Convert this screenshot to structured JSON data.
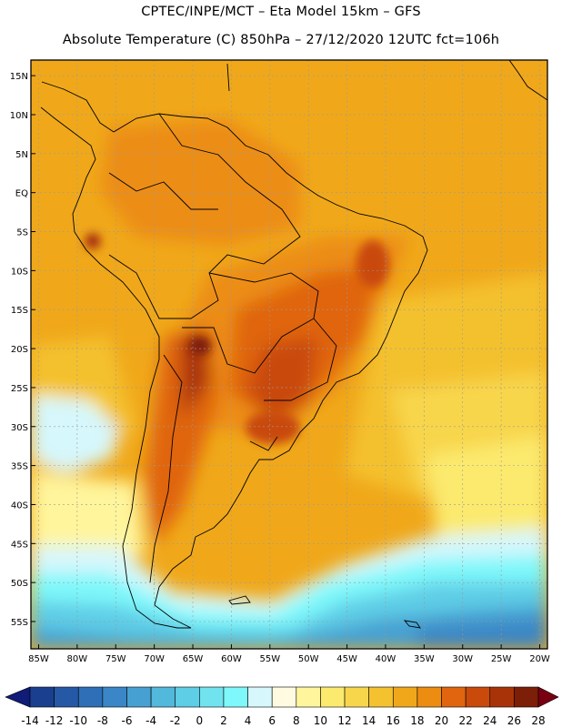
{
  "header": {
    "title_line1": "CPTEC/INPE/MCT –  Eta Model 15km – GFS",
    "title_line2": "Absolute Temperature (C) 850hPa – 27/12/2020 12UTC fct=106h"
  },
  "map": {
    "lat_labels": [
      "15N",
      "10N",
      "5N",
      "EQ",
      "5S",
      "10S",
      "15S",
      "20S",
      "25S",
      "30S",
      "35S",
      "40S",
      "45S",
      "50S",
      "55S"
    ],
    "lon_labels": [
      "85W",
      "80W",
      "75W",
      "70W",
      "65W",
      "60W",
      "55W",
      "50W",
      "45W",
      "40W",
      "35W",
      "30W",
      "25W",
      "20W"
    ],
    "lat_values": [
      15,
      10,
      5,
      0,
      -5,
      -10,
      -15,
      -20,
      -25,
      -30,
      -35,
      -40,
      -45,
      -50,
      -55
    ],
    "lon_values": [
      -85,
      -80,
      -75,
      -70,
      -65,
      -60,
      -55,
      -50,
      -45,
      -40,
      -35,
      -30,
      -25,
      -20
    ],
    "extent": {
      "lon_min": -86,
      "lon_max": -19,
      "lat_min": -58.5,
      "lat_max": 17
    }
  },
  "colorbar": {
    "labels": [
      "-14",
      "-12",
      "-10",
      "-8",
      "-6",
      "-4",
      "-2",
      "0",
      "2",
      "4",
      "6",
      "8",
      "10",
      "12",
      "14",
      "16",
      "18",
      "20",
      "22",
      "24",
      "26",
      "28"
    ],
    "colors": [
      "#1a3f8f",
      "#2559a6",
      "#2f6fb7",
      "#3a86c6",
      "#46a0d2",
      "#52b8dc",
      "#5ecde6",
      "#70e3ef",
      "#7ef8fa",
      "#d6f7fc",
      "#fffbe0",
      "#fff59c",
      "#fbea6e",
      "#f8d64c",
      "#f4c12f",
      "#f0a81a",
      "#ec8d12",
      "#e0650e",
      "#c94a0b",
      "#a83309",
      "#7d1e08"
    ],
    "colors_ends": {
      "low": "#101c78",
      "high": "#780011"
    }
  }
}
